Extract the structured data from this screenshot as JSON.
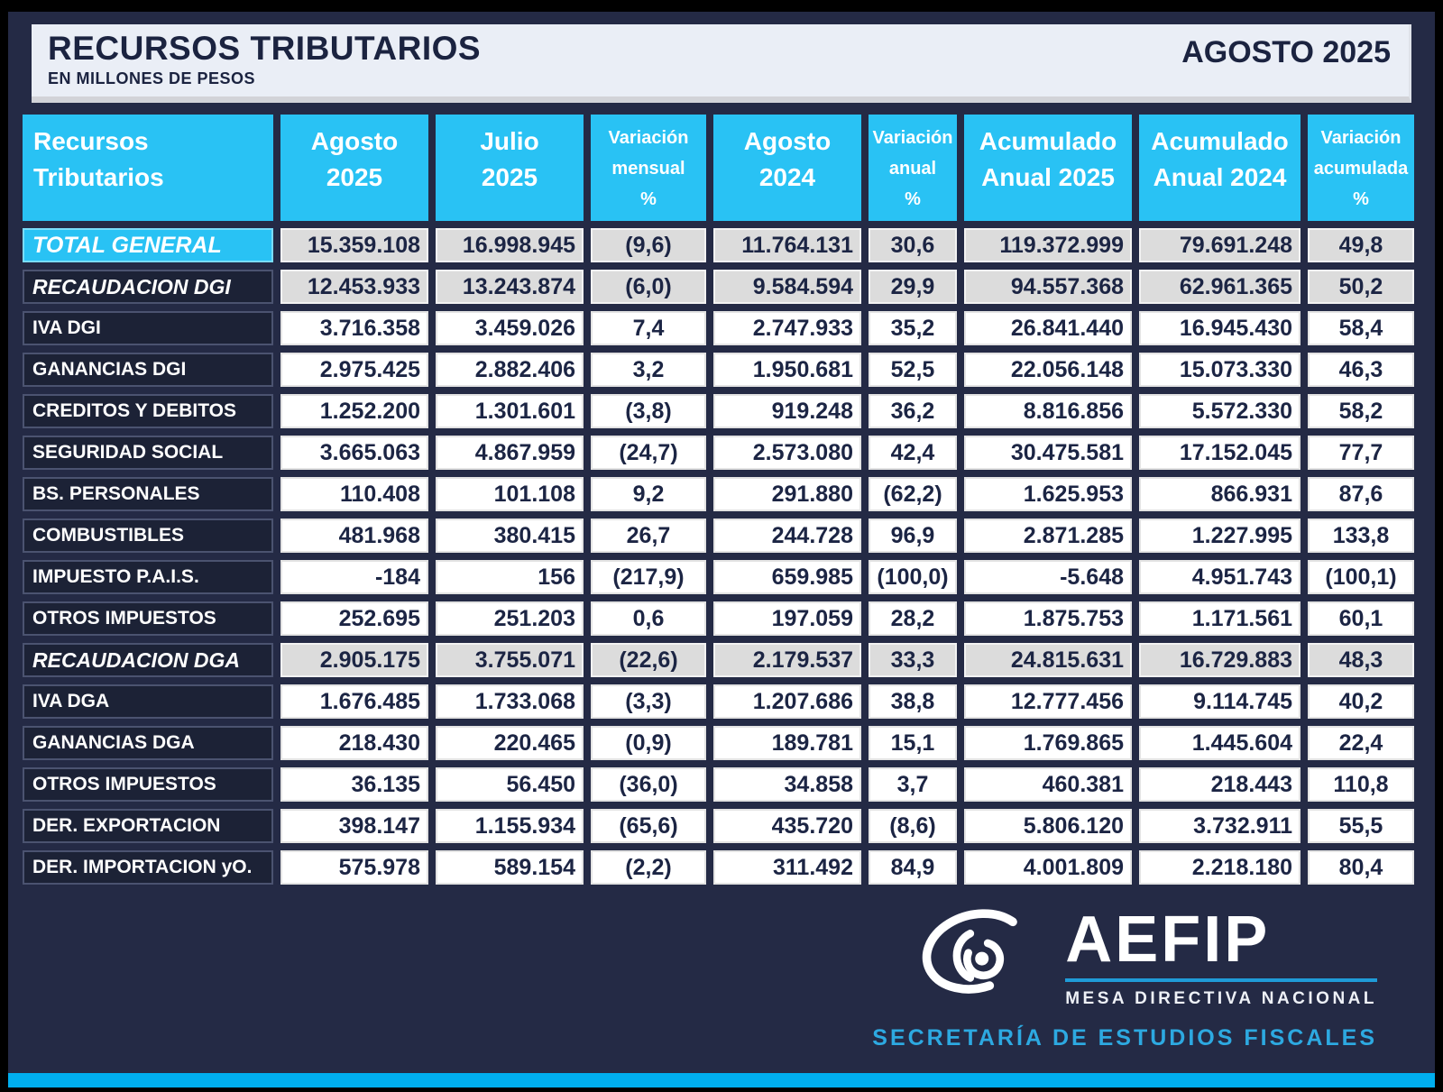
{
  "chart_data": {
    "type": "table",
    "title": "RECURSOS TRIBUTARIOS",
    "subtitle": "EN MILLONES DE PESOS",
    "period": "AGOSTO 2025",
    "units": "millones de pesos",
    "columns": [
      {
        "id": "recursos-tributarios",
        "lines": [
          "Recursos",
          "Tributarios"
        ],
        "align": "left",
        "small": false
      },
      {
        "id": "agosto-2025",
        "lines": [
          "Agosto",
          "2025"
        ],
        "align": "right",
        "small": false
      },
      {
        "id": "julio-2025",
        "lines": [
          "Julio",
          "2025"
        ],
        "align": "right",
        "small": false
      },
      {
        "id": "variacion-mensual-pct",
        "lines": [
          "Variación",
          "mensual",
          "%"
        ],
        "align": "center",
        "small": true
      },
      {
        "id": "agosto-2024",
        "lines": [
          "Agosto",
          "2024"
        ],
        "align": "right",
        "small": false
      },
      {
        "id": "variacion-anual-pct",
        "lines": [
          "Variación",
          "anual",
          "%"
        ],
        "align": "center",
        "small": true
      },
      {
        "id": "acumulado-anual-2025",
        "lines": [
          "Acumulado",
          "Anual 2025"
        ],
        "align": "right",
        "small": false
      },
      {
        "id": "acumulado-anual-2024",
        "lines": [
          "Acumulado",
          "Anual 2024"
        ],
        "align": "right",
        "small": false
      },
      {
        "id": "variacion-acumulada-pct",
        "lines": [
          "Variación",
          "acumulada",
          "%"
        ],
        "align": "center",
        "small": true
      }
    ],
    "rows": [
      {
        "label": "TOTAL GENERAL",
        "style": "total",
        "values": [
          "15.359.108",
          "16.998.945",
          "(9,6)",
          "11.764.131",
          "30,6",
          "119.372.999",
          "79.691.248",
          "49,8"
        ]
      },
      {
        "label": "RECAUDACION DGI",
        "style": "section",
        "values": [
          "12.453.933",
          "13.243.874",
          "(6,0)",
          "9.584.594",
          "29,9",
          "94.557.368",
          "62.961.365",
          "50,2"
        ]
      },
      {
        "label": "IVA DGI",
        "style": "normal",
        "values": [
          "3.716.358",
          "3.459.026",
          "7,4",
          "2.747.933",
          "35,2",
          "26.841.440",
          "16.945.430",
          "58,4"
        ]
      },
      {
        "label": "GANANCIAS DGI",
        "style": "normal",
        "values": [
          "2.975.425",
          "2.882.406",
          "3,2",
          "1.950.681",
          "52,5",
          "22.056.148",
          "15.073.330",
          "46,3"
        ]
      },
      {
        "label": "CREDITOS Y DEBITOS",
        "style": "normal",
        "values": [
          "1.252.200",
          "1.301.601",
          "(3,8)",
          "919.248",
          "36,2",
          "8.816.856",
          "5.572.330",
          "58,2"
        ]
      },
      {
        "label": "SEGURIDAD SOCIAL",
        "style": "normal",
        "values": [
          "3.665.063",
          "4.867.959",
          "(24,7)",
          "2.573.080",
          "42,4",
          "30.475.581",
          "17.152.045",
          "77,7"
        ]
      },
      {
        "label": "BS. PERSONALES",
        "style": "normal",
        "values": [
          "110.408",
          "101.108",
          "9,2",
          "291.880",
          "(62,2)",
          "1.625.953",
          "866.931",
          "87,6"
        ]
      },
      {
        "label": "COMBUSTIBLES",
        "style": "normal",
        "values": [
          "481.968",
          "380.415",
          "26,7",
          "244.728",
          "96,9",
          "2.871.285",
          "1.227.995",
          "133,8"
        ]
      },
      {
        "label": "IMPUESTO P.A.I.S.",
        "style": "normal",
        "values": [
          "-184",
          "156",
          "(217,9)",
          "659.985",
          "(100,0)",
          "-5.648",
          "4.951.743",
          "(100,1)"
        ]
      },
      {
        "label": "OTROS IMPUESTOS",
        "style": "normal",
        "values": [
          "252.695",
          "251.203",
          "0,6",
          "197.059",
          "28,2",
          "1.875.753",
          "1.171.561",
          "60,1"
        ]
      },
      {
        "label": "RECAUDACION DGA",
        "style": "section",
        "values": [
          "2.905.175",
          "3.755.071",
          "(22,6)",
          "2.179.537",
          "33,3",
          "24.815.631",
          "16.729.883",
          "48,3"
        ]
      },
      {
        "label": "IVA DGA",
        "style": "normal",
        "values": [
          "1.676.485",
          "1.733.068",
          "(3,3)",
          "1.207.686",
          "38,8",
          "12.777.456",
          "9.114.745",
          "40,2"
        ]
      },
      {
        "label": "GANANCIAS DGA",
        "style": "normal",
        "values": [
          "218.430",
          "220.465",
          "(0,9)",
          "189.781",
          "15,1",
          "1.769.865",
          "1.445.604",
          "22,4"
        ]
      },
      {
        "label": "OTROS IMPUESTOS",
        "style": "normal",
        "values": [
          "36.135",
          "56.450",
          "(36,0)",
          "34.858",
          "3,7",
          "460.381",
          "218.443",
          "110,8"
        ]
      },
      {
        "label": "DER. EXPORTACION",
        "style": "normal",
        "values": [
          "398.147",
          "1.155.934",
          "(65,6)",
          "435.720",
          "(8,6)",
          "5.806.120",
          "3.732.911",
          "55,5"
        ]
      },
      {
        "label": "DER. IMPORTACION yO.",
        "style": "normal",
        "values": [
          "575.978",
          "589.154",
          "(2,2)",
          "311.492",
          "84,9",
          "4.001.809",
          "2.218.180",
          "80,4"
        ]
      }
    ]
  },
  "footer": {
    "org": "AEFIP",
    "division": "MESA DIRECTIVA NACIONAL",
    "secretariat": "SECRETARÍA  DE  ESTUDIOS  FISCALES"
  },
  "colors": {
    "header_cyan": "#29c2f4",
    "accent_bar": "#00aeef",
    "shaded_cell": "#dcdcdc",
    "navy_background": "#242a45",
    "cell_text": "#1c2544",
    "secretariat_cyan": "#2da9e1"
  }
}
